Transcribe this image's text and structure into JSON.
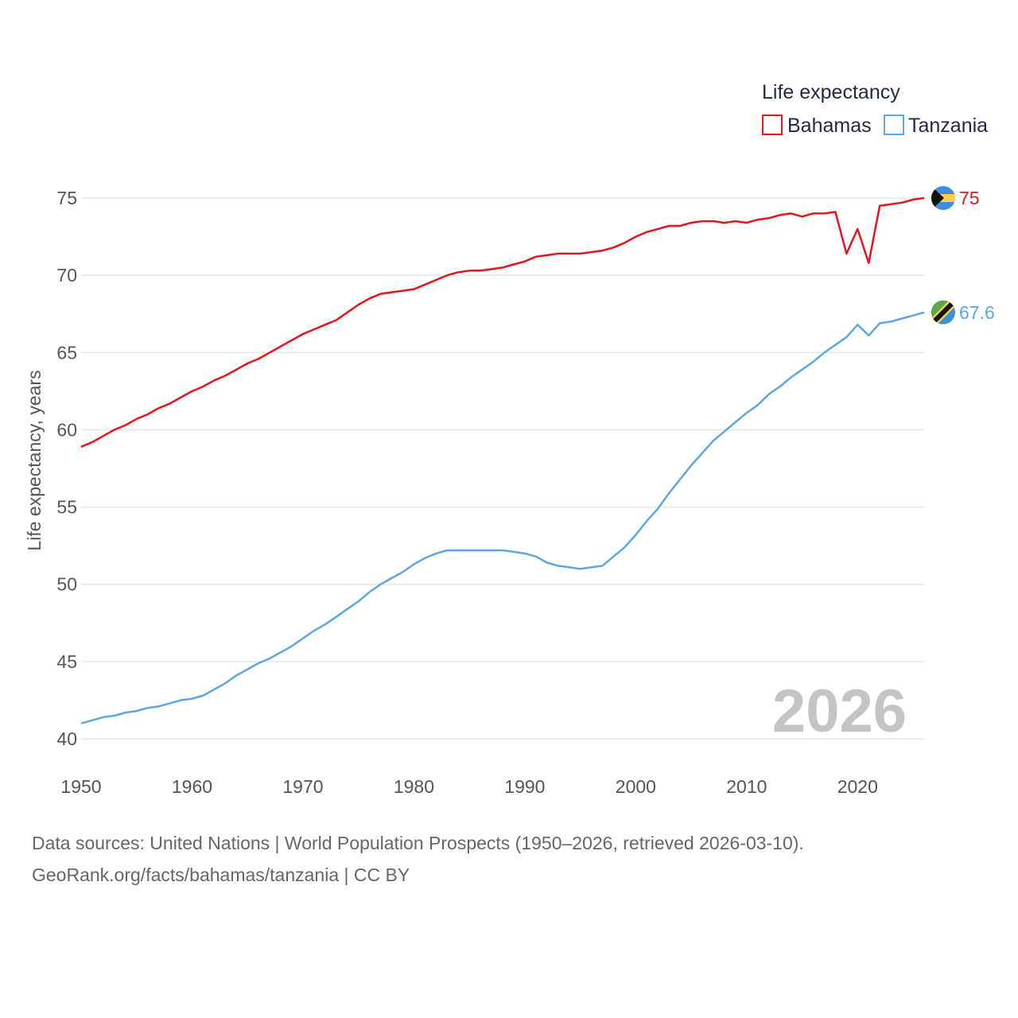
{
  "chart_data": {
    "type": "line",
    "legend_title": "Life expectancy",
    "ylabel": "Life expectancy, years",
    "xlabel": "",
    "xlim": [
      1950,
      2026
    ],
    "ylim": [
      40,
      75
    ],
    "x_ticks": [
      1950,
      1960,
      1970,
      1980,
      1990,
      2000,
      2010,
      2020
    ],
    "y_ticks": [
      40,
      45,
      50,
      55,
      60,
      65,
      70,
      75
    ],
    "current_year": "2026",
    "legend_position": "top-right",
    "x": [
      1950,
      1951,
      1952,
      1953,
      1954,
      1955,
      1956,
      1957,
      1958,
      1959,
      1960,
      1961,
      1962,
      1963,
      1964,
      1965,
      1966,
      1967,
      1968,
      1969,
      1970,
      1971,
      1972,
      1973,
      1974,
      1975,
      1976,
      1977,
      1978,
      1979,
      1980,
      1981,
      1982,
      1983,
      1984,
      1985,
      1986,
      1987,
      1988,
      1989,
      1990,
      1991,
      1992,
      1993,
      1994,
      1995,
      1996,
      1997,
      1998,
      1999,
      2000,
      2001,
      2002,
      2003,
      2004,
      2005,
      2006,
      2007,
      2008,
      2009,
      2010,
      2011,
      2012,
      2013,
      2014,
      2015,
      2016,
      2017,
      2018,
      2019,
      2020,
      2021,
      2022,
      2023,
      2024,
      2025,
      2026
    ],
    "series": [
      {
        "name": "Bahamas",
        "color": "#e8141c",
        "end_label": "75",
        "flag": "bahamas-flag",
        "values": [
          58.9,
          59.2,
          59.6,
          60.0,
          60.3,
          60.7,
          61.0,
          61.4,
          61.7,
          62.1,
          62.5,
          62.8,
          63.2,
          63.5,
          63.9,
          64.3,
          64.6,
          65.0,
          65.4,
          65.8,
          66.2,
          66.5,
          66.8,
          67.1,
          67.6,
          68.1,
          68.5,
          68.8,
          68.9,
          69.0,
          69.1,
          69.4,
          69.7,
          70.0,
          70.2,
          70.3,
          70.3,
          70.4,
          70.5,
          70.7,
          70.9,
          71.2,
          71.3,
          71.4,
          71.4,
          71.4,
          71.5,
          71.6,
          71.8,
          72.1,
          72.5,
          72.8,
          73.0,
          73.2,
          73.2,
          73.4,
          73.5,
          73.5,
          73.4,
          73.5,
          73.4,
          73.6,
          73.7,
          73.9,
          74.0,
          73.8,
          74.0,
          74.0,
          74.1,
          71.4,
          73.0,
          70.8,
          74.5,
          74.6,
          74.7,
          74.9,
          75.0
        ]
      },
      {
        "name": "Tanzania",
        "color": "#5ba6e3",
        "end_label": "67.6",
        "flag": "tanzania-flag",
        "values": [
          41.0,
          41.2,
          41.4,
          41.5,
          41.7,
          41.8,
          42.0,
          42.1,
          42.3,
          42.5,
          42.6,
          42.8,
          43.2,
          43.6,
          44.1,
          44.5,
          44.9,
          45.2,
          45.6,
          46.0,
          46.5,
          47.0,
          47.4,
          47.9,
          48.4,
          48.9,
          49.5,
          50.0,
          50.4,
          50.8,
          51.3,
          51.7,
          52.0,
          52.2,
          52.2,
          52.2,
          52.2,
          52.2,
          52.2,
          52.1,
          52.0,
          51.8,
          51.4,
          51.2,
          51.1,
          51.0,
          51.1,
          51.2,
          51.8,
          52.4,
          53.2,
          54.1,
          54.9,
          55.9,
          56.8,
          57.7,
          58.5,
          59.3,
          59.9,
          60.5,
          61.1,
          61.6,
          62.3,
          62.8,
          63.4,
          63.9,
          64.4,
          65.0,
          65.5,
          66.0,
          66.8,
          66.1,
          66.9,
          67.0,
          67.2,
          67.4,
          67.6
        ]
      }
    ]
  },
  "footer": {
    "source_line": "Data sources: United Nations | World Population Prospects (1950–2026, retrieved 2026-03-10).",
    "url_line": "GeoRank.org/facts/bahamas/tanzania | CC BY"
  }
}
